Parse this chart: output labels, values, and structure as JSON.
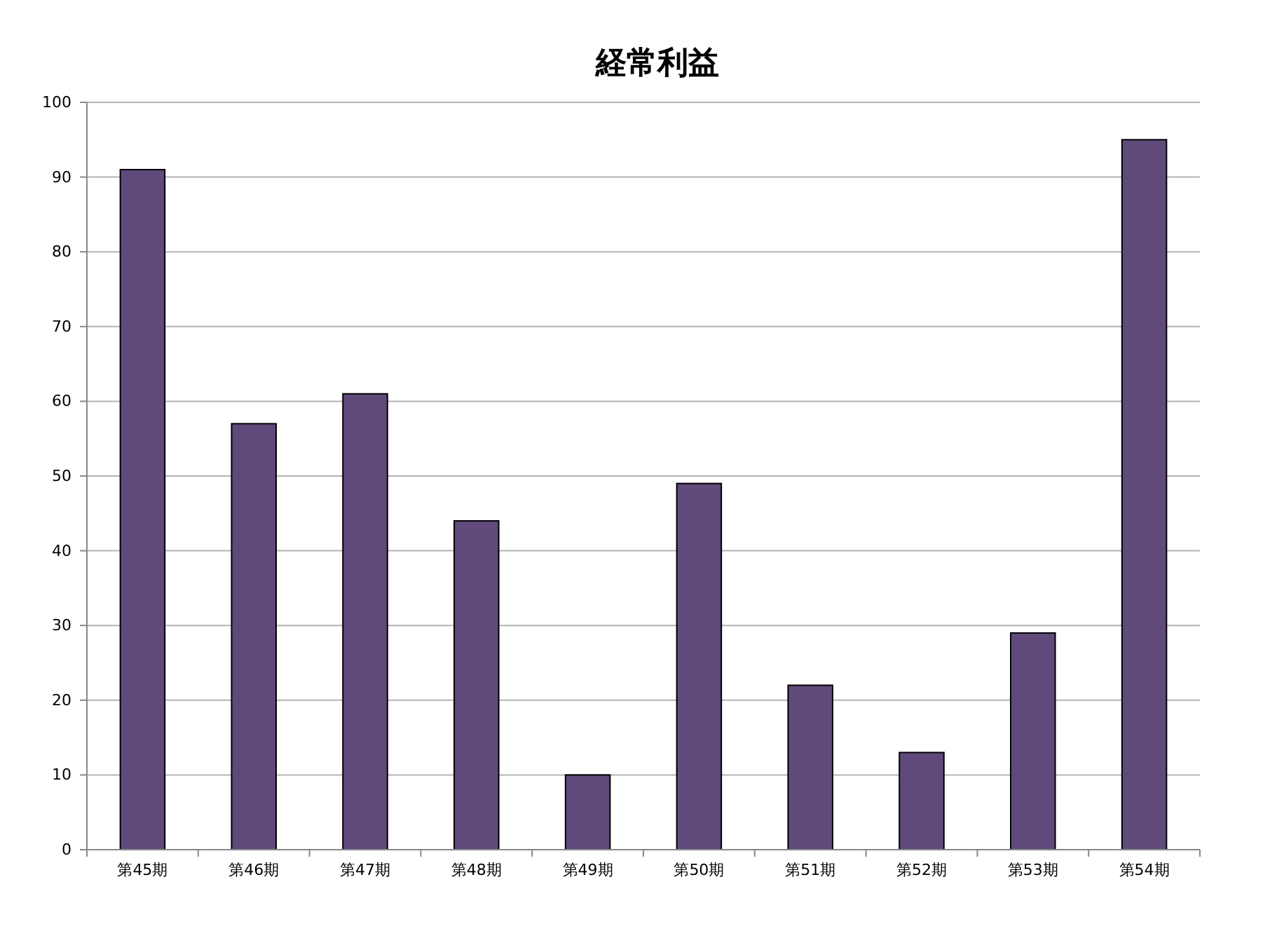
{
  "chart_data": {
    "type": "bar",
    "title": "経常利益",
    "categories": [
      "第45期",
      "第46期",
      "第47期",
      "第48期",
      "第49期",
      "第50期",
      "第51期",
      "第52期",
      "第53期",
      "第54期"
    ],
    "values": [
      91,
      57,
      61,
      44,
      10,
      49,
      22,
      13,
      29,
      95
    ],
    "color": "#604a7b",
    "ylim": [
      0,
      100
    ],
    "yticks": [
      0,
      10,
      20,
      30,
      40,
      50,
      60,
      70,
      80,
      90,
      100
    ],
    "grid": "y"
  }
}
